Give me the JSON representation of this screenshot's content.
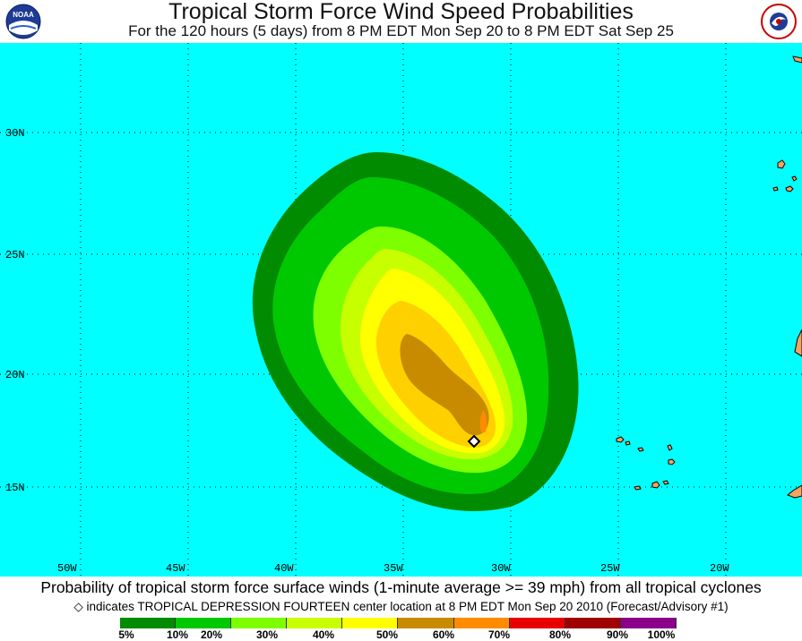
{
  "header": {
    "title": "Tropical Storm Force Wind Speed Probabilities",
    "subtitle": "For the 120 hours (5 days) from 8 PM EDT Mon Sep 20 to 8 PM EDT Sat Sep 25",
    "left_logo": "noaa-logo",
    "right_logo": "nws-logo",
    "left_logo_text": "NOAA",
    "right_logo_text": "NATIONAL WEATHER SERVICE"
  },
  "map": {
    "ocean_color": "#00ffff",
    "land_color": "#f4a460",
    "lat_labels": [
      "30N",
      "25N",
      "20N",
      "15N"
    ],
    "lon_labels": [
      "50W",
      "45W",
      "40W",
      "35W",
      "30W",
      "25W",
      "20W"
    ],
    "storm_marker": "diamond-icon"
  },
  "footer": {
    "line1": "Probability of tropical storm force surface winds (1-minute average >= 39 mph) from all tropical cyclones",
    "line2": "indicates TROPICAL DEPRESSION FOURTEEN center location at 8 PM EDT Mon Sep 20 2010 (Forecast/Advisory #1)",
    "marker_symbol": "◇"
  },
  "legend": {
    "colors": [
      "#008b00",
      "#00c800",
      "#7dff00",
      "#c8ff00",
      "#ffff00",
      "#ffd000",
      "#c88b00",
      "#ff8c00",
      "#e80000",
      "#a00000",
      "#8b0014",
      "#8b008b"
    ],
    "labels": [
      "5%",
      "10%",
      "20%",
      "30%",
      "40%",
      "50%",
      "60%",
      "70%",
      "80%",
      "90%",
      "100%"
    ]
  }
}
